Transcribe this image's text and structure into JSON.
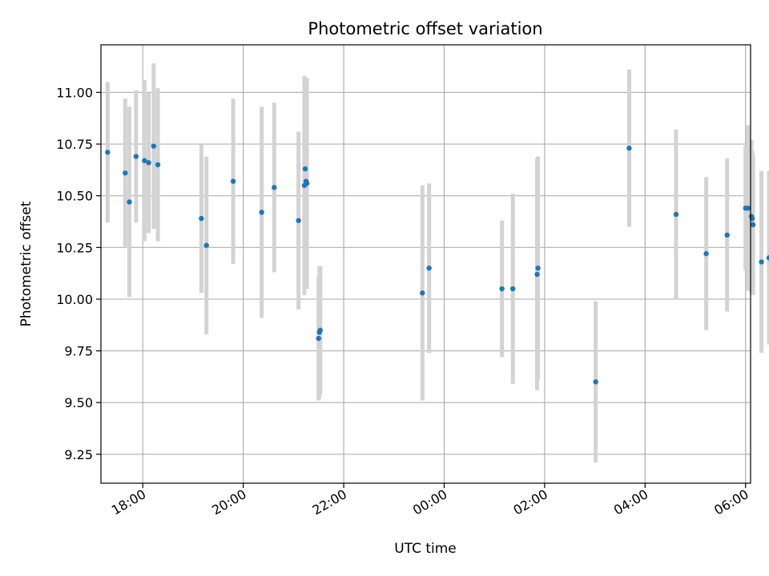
{
  "chart_data": {
    "type": "scatter",
    "title": "Photometric offset variation",
    "xlabel": "UTC time",
    "ylabel": "Photometric offset",
    "x_is_time": true,
    "xlim": [
      "17:10",
      "30:06"
    ],
    "ylim": [
      9.11,
      11.23
    ],
    "grid": true,
    "x_tick_labels": [
      "18:00",
      "20:00",
      "22:00",
      "00:00",
      "02:00",
      "04:00",
      "06:00"
    ],
    "y_tick_labels": [
      "9.25",
      "9.50",
      "9.75",
      "10.00",
      "10.25",
      "10.50",
      "10.75",
      "11.00"
    ],
    "colors": {
      "point": "#1f77b4",
      "errorbar": "#d3d3d3",
      "grid": "#b0b0b0"
    },
    "points": [
      {
        "x": "17:18",
        "y": 10.71,
        "err": 0.34
      },
      {
        "x": "17:39",
        "y": 10.61,
        "err": 0.36
      },
      {
        "x": "17:44",
        "y": 10.47,
        "err": 0.46
      },
      {
        "x": "17:52",
        "y": 10.69,
        "err": 0.32
      },
      {
        "x": "18:02",
        "y": 10.67,
        "err": 0.39
      },
      {
        "x": "18:07",
        "y": 10.66,
        "err": 0.34
      },
      {
        "x": "18:13",
        "y": 10.74,
        "err": 0.4
      },
      {
        "x": "18:18",
        "y": 10.65,
        "err": 0.37
      },
      {
        "x": "19:10",
        "y": 10.39,
        "err": 0.36
      },
      {
        "x": "19:16",
        "y": 10.26,
        "err": 0.43
      },
      {
        "x": "19:48",
        "y": 10.57,
        "err": 0.4
      },
      {
        "x": "20:22",
        "y": 10.42,
        "err": 0.51
      },
      {
        "x": "20:37",
        "y": 10.54,
        "err": 0.41
      },
      {
        "x": "21:06",
        "y": 10.38,
        "err": 0.43
      },
      {
        "x": "21:13",
        "y": 10.55,
        "err": 0.53
      },
      {
        "x": "21:14",
        "y": 10.63,
        "err": 0.44
      },
      {
        "x": "21:15",
        "y": 10.57,
        "err": 0.45
      },
      {
        "x": "21:16",
        "y": 10.56,
        "err": 0.51
      },
      {
        "x": "21:30",
        "y": 9.81,
        "err": 0.3
      },
      {
        "x": "21:31",
        "y": 9.84,
        "err": 0.32
      },
      {
        "x": "21:32",
        "y": 9.85,
        "err": 0.31
      },
      {
        "x": "23:34",
        "y": 10.03,
        "err": 0.52
      },
      {
        "x": "23:42",
        "y": 10.15,
        "err": 0.41
      },
      {
        "x": "25:09",
        "y": 10.05,
        "err": 0.33
      },
      {
        "x": "25:22",
        "y": 10.05,
        "err": 0.46
      },
      {
        "x": "25:51",
        "y": 10.12,
        "err": 0.56
      },
      {
        "x": "25:52",
        "y": 10.15,
        "err": 0.54
      },
      {
        "x": "27:01",
        "y": 9.6,
        "err": 0.39
      },
      {
        "x": "27:41",
        "y": 10.73,
        "err": 0.38
      },
      {
        "x": "28:37",
        "y": 10.41,
        "err": 0.41
      },
      {
        "x": "29:13",
        "y": 10.22,
        "err": 0.37
      },
      {
        "x": "29:38",
        "y": 10.31,
        "err": 0.37
      },
      {
        "x": "30:00",
        "y": 10.44,
        "err": 0.3
      },
      {
        "x": "30:03",
        "y": 10.44,
        "err": 0.4
      },
      {
        "x": "30:07",
        "y": 10.4,
        "err": 0.37
      },
      {
        "x": "30:08",
        "y": 10.39,
        "err": 0.33
      },
      {
        "x": "30:09",
        "y": 10.36,
        "err": 0.34
      },
      {
        "x": "30:19",
        "y": 10.18,
        "err": 0.44
      },
      {
        "x": "30:28",
        "y": 10.2,
        "err": 0.42
      }
    ]
  }
}
